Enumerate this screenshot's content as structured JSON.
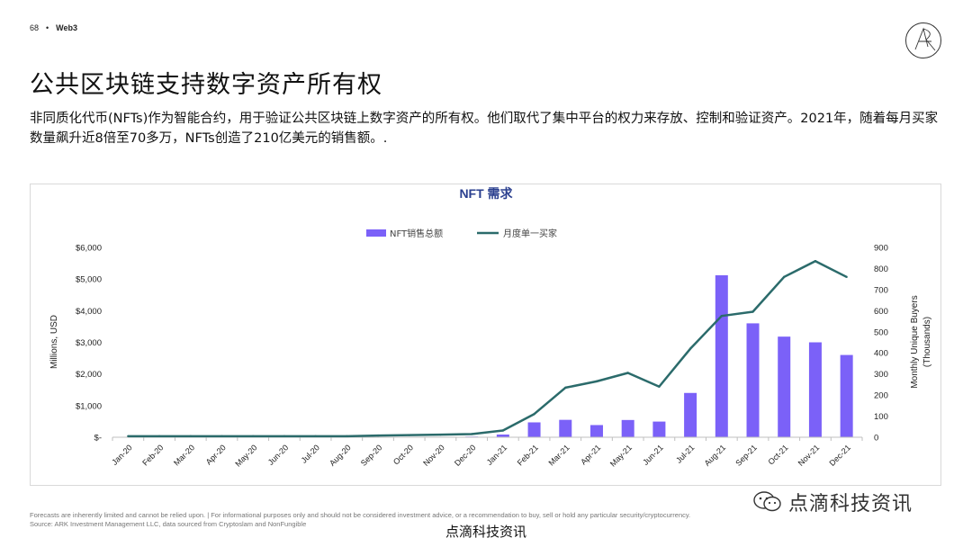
{
  "header": {
    "page_number": "68",
    "separator": "•",
    "section": "Web3"
  },
  "page_title": "公共区块链支持数字资产所有权",
  "intro_text": "非同质化代币(NFTs)作为智能合约，用于验证公共区块链上数字资产的所有权。他们取代了集中平台的权力来存放、控制和验证资产。2021年，随着每月买家数量飙升近8倍至70多万，NFTs创造了210亿美元的销售额。.",
  "chart_data": {
    "type": "bar+line",
    "title": "NFT 需求",
    "categories": [
      "Jan-20",
      "Feb-20",
      "Mar-20",
      "Apr-20",
      "May-20",
      "Jun-20",
      "Jul-20",
      "Aug-20",
      "Sep-20",
      "Oct-20",
      "Nov-20",
      "Dec-20",
      "Jan-21",
      "Feb-21",
      "Mar-21",
      "Apr-21",
      "May-21",
      "Jun-21",
      "Jul-21",
      "Aug-21",
      "Sep-21",
      "Oct-21",
      "Nov-21",
      "Dec-21"
    ],
    "series": [
      {
        "name": "NFT销售总额",
        "type": "bar",
        "axis": "left",
        "color": "#7b61f8",
        "values": [
          2,
          2,
          2,
          2,
          3,
          3,
          4,
          4,
          5,
          10,
          12,
          20,
          85,
          470,
          550,
          385,
          545,
          495,
          1400,
          5120,
          3600,
          3180,
          3000,
          2600
        ]
      },
      {
        "name": "月度单一买家",
        "type": "line",
        "axis": "right",
        "color": "#2b6b6b",
        "values": [
          5,
          5,
          5,
          5,
          5,
          5,
          5,
          5,
          8,
          10,
          12,
          15,
          32,
          110,
          235,
          265,
          305,
          240,
          420,
          575,
          595,
          760,
          835,
          760
        ]
      }
    ],
    "y_left": {
      "label": "Millions, USD",
      "range": [
        0,
        6000
      ],
      "ticks": [
        0,
        1000,
        2000,
        3000,
        4000,
        5000,
        6000
      ],
      "tick_labels": [
        "$-",
        "$1,000",
        "$2,000",
        "$3,000",
        "$4,000",
        "$5,000",
        "$6,000"
      ]
    },
    "y_right": {
      "label_line1": "Monthly Unique Buyers",
      "label_line2": "(Thousands)",
      "range": [
        0,
        900
      ],
      "ticks": [
        0,
        100,
        200,
        300,
        400,
        500,
        600,
        700,
        800,
        900
      ]
    },
    "legend_position": "top-center",
    "grid": false
  },
  "footnote": {
    "line1": "Forecasts are inherently limited and cannot be relied upon. | For informational purposes only and should not be considered investment advice, or a recommendation to buy, sell or hold any particular security/cryptocurrency.",
    "line2": "Source: ARK Investment Management LLC, data sourced from Cryptoslam and NonFungible"
  },
  "watermark": {
    "overlay": "点滴科技资讯",
    "bottom": "点滴科技资讯"
  },
  "colors": {
    "bar": "#7b61f8",
    "line": "#2b6b6b",
    "axis": "#bfbfbf"
  }
}
